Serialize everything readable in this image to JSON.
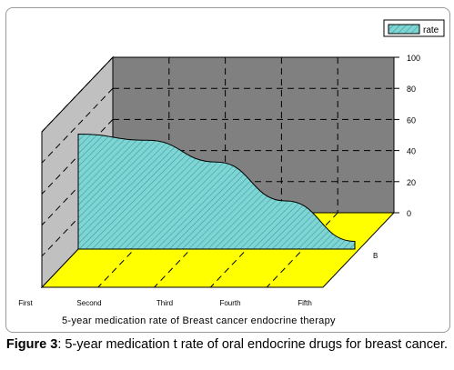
{
  "chart_data": {
    "type": "area",
    "style": "3d",
    "categories": [
      "First",
      "Second",
      "Third",
      "Fourth",
      "Fifth"
    ],
    "series": [
      {
        "name": "rate",
        "values": [
          74,
          70,
          56,
          31,
          5
        ]
      }
    ],
    "depth_label": "B",
    "xlabel": "5-year medication rate of Breast cancer endocrine therapy",
    "ylabel": "",
    "ylim": [
      0,
      100
    ],
    "yticks": [
      "0",
      "20",
      "40",
      "60",
      "80",
      "100"
    ],
    "grid": true,
    "legend": "top-right",
    "colors": {
      "area": "#7fd4d4",
      "back_wall": "#808080",
      "side_wall": "#c0c0c0",
      "floor": "#ffff00"
    }
  },
  "caption": {
    "label": "Figure 3",
    "text": ": 5-year medication t rate of oral endocrine drugs for breast cancer."
  }
}
